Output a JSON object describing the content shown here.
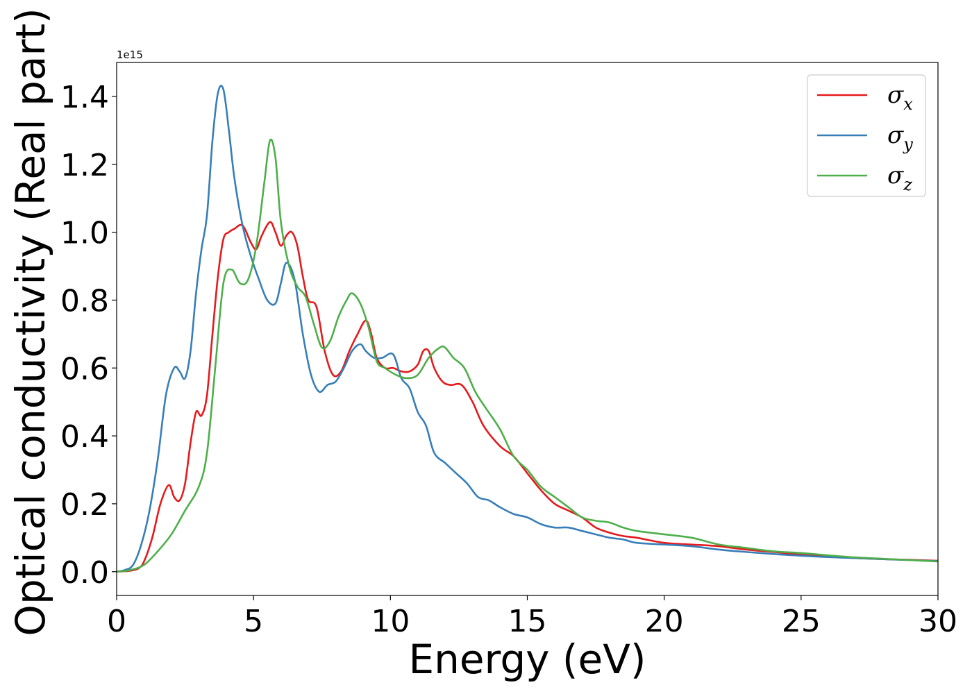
{
  "chart_data": {
    "type": "line",
    "xlabel": "Energy (eV)",
    "ylabel": "Optical conductivity (Real part)",
    "y_offset_label": "1e15",
    "xlim": [
      0,
      30
    ],
    "ylim": [
      -0.07,
      1.5
    ],
    "xticks": [
      0,
      5,
      10,
      15,
      20,
      25,
      30
    ],
    "xtick_labels": [
      "0",
      "5",
      "10",
      "15",
      "20",
      "25",
      "30"
    ],
    "yticks": [
      0.0,
      0.2,
      0.4,
      0.6,
      0.8,
      1.0,
      1.2,
      1.4
    ],
    "ytick_labels": [
      "0.0",
      "0.2",
      "0.4",
      "0.6",
      "0.8",
      "1.0",
      "1.2",
      "1.4"
    ],
    "grid": false,
    "legend_position": "top-right",
    "series": [
      {
        "name": "σx",
        "legend_symbol": "σ",
        "legend_subscript": "x",
        "color": "#e41a1c",
        "x": [
          0,
          0.5,
          0.8,
          1.0,
          1.3,
          1.6,
          1.9,
          2.1,
          2.3,
          2.5,
          2.7,
          2.9,
          3.1,
          3.3,
          3.5,
          3.7,
          3.9,
          4.1,
          4.3,
          4.6,
          4.9,
          5.1,
          5.3,
          5.6,
          5.8,
          6.0,
          6.2,
          6.4,
          6.6,
          6.8,
          7.0,
          7.3,
          7.6,
          7.9,
          8.2,
          8.5,
          8.8,
          9.1,
          9.3,
          9.5,
          9.8,
          10.1,
          10.4,
          10.7,
          11.0,
          11.2,
          11.4,
          11.6,
          11.9,
          12.2,
          12.6,
          13.0,
          13.4,
          14.0,
          14.5,
          15.0,
          15.5,
          16.0,
          16.5,
          17.0,
          17.5,
          18.0,
          18.5,
          19.0,
          20.0,
          21.0,
          22.0,
          23.0,
          24.0,
          25.0,
          26.0,
          27.0,
          28.0,
          29.0,
          30.0
        ],
        "values": [
          0.0,
          0.003,
          0.01,
          0.03,
          0.1,
          0.2,
          0.255,
          0.22,
          0.21,
          0.26,
          0.38,
          0.47,
          0.46,
          0.52,
          0.7,
          0.87,
          0.98,
          1.0,
          1.01,
          1.02,
          0.97,
          0.95,
          0.99,
          1.03,
          1.0,
          0.96,
          0.99,
          1.0,
          0.96,
          0.87,
          0.8,
          0.78,
          0.65,
          0.58,
          0.59,
          0.65,
          0.7,
          0.74,
          0.7,
          0.63,
          0.6,
          0.6,
          0.59,
          0.59,
          0.61,
          0.65,
          0.65,
          0.6,
          0.56,
          0.55,
          0.55,
          0.5,
          0.43,
          0.37,
          0.34,
          0.29,
          0.24,
          0.2,
          0.18,
          0.16,
          0.13,
          0.115,
          0.105,
          0.1,
          0.085,
          0.08,
          0.075,
          0.065,
          0.058,
          0.05,
          0.045,
          0.04,
          0.037,
          0.035,
          0.032
        ]
      },
      {
        "name": "σy",
        "legend_symbol": "σ",
        "legend_subscript": "y",
        "color": "#377eb8",
        "x": [
          0,
          0.3,
          0.6,
          0.9,
          1.2,
          1.5,
          1.8,
          2.1,
          2.3,
          2.5,
          2.7,
          2.9,
          3.1,
          3.3,
          3.5,
          3.7,
          3.9,
          4.1,
          4.3,
          4.6,
          4.9,
          5.2,
          5.5,
          5.8,
          6.0,
          6.2,
          6.5,
          6.8,
          7.1,
          7.4,
          7.7,
          8.0,
          8.3,
          8.6,
          8.9,
          9.1,
          9.4,
          9.7,
          10.1,
          10.4,
          10.7,
          11.0,
          11.3,
          11.6,
          12.0,
          12.4,
          12.8,
          13.2,
          13.6,
          14.0,
          14.5,
          15.0,
          15.5,
          16.0,
          16.5,
          17.0,
          17.5,
          18.0,
          18.5,
          19.0,
          20.0,
          21.0,
          22.0,
          23.0,
          24.0,
          25.0,
          26.0,
          27.0,
          28.0,
          29.0,
          30.0
        ],
        "values": [
          0.0,
          0.005,
          0.02,
          0.08,
          0.18,
          0.33,
          0.52,
          0.6,
          0.59,
          0.57,
          0.65,
          0.82,
          0.95,
          1.05,
          1.27,
          1.41,
          1.42,
          1.3,
          1.16,
          1.02,
          0.93,
          0.86,
          0.8,
          0.79,
          0.85,
          0.91,
          0.86,
          0.7,
          0.58,
          0.53,
          0.55,
          0.56,
          0.6,
          0.65,
          0.67,
          0.65,
          0.63,
          0.63,
          0.64,
          0.57,
          0.54,
          0.47,
          0.43,
          0.35,
          0.32,
          0.29,
          0.26,
          0.22,
          0.21,
          0.19,
          0.17,
          0.16,
          0.14,
          0.13,
          0.13,
          0.12,
          0.11,
          0.1,
          0.095,
          0.085,
          0.08,
          0.075,
          0.065,
          0.058,
          0.052,
          0.047,
          0.043,
          0.04,
          0.037,
          0.034,
          0.031
        ]
      },
      {
        "name": "σz",
        "legend_symbol": "σ",
        "legend_subscript": "z",
        "color": "#4daf4a",
        "x": [
          0,
          0.5,
          1.0,
          1.5,
          2.0,
          2.5,
          3.0,
          3.3,
          3.6,
          3.9,
          4.2,
          4.5,
          4.8,
          5.1,
          5.4,
          5.6,
          5.8,
          6.0,
          6.3,
          6.6,
          6.9,
          7.2,
          7.5,
          7.8,
          8.1,
          8.4,
          8.6,
          8.9,
          9.2,
          9.5,
          9.8,
          10.2,
          10.6,
          11.0,
          11.4,
          11.8,
          12.0,
          12.3,
          12.7,
          13.1,
          13.5,
          14.0,
          14.5,
          15.0,
          15.5,
          16.0,
          16.5,
          17.0,
          17.5,
          18.0,
          18.5,
          19.0,
          20.0,
          21.0,
          22.0,
          23.0,
          24.0,
          25.0,
          26.0,
          27.0,
          28.0,
          29.0,
          30.0
        ],
        "values": [
          0.0,
          0.005,
          0.02,
          0.06,
          0.11,
          0.18,
          0.25,
          0.35,
          0.6,
          0.85,
          0.89,
          0.85,
          0.86,
          0.96,
          1.15,
          1.27,
          1.22,
          1.03,
          0.9,
          0.84,
          0.81,
          0.73,
          0.66,
          0.68,
          0.75,
          0.8,
          0.82,
          0.79,
          0.72,
          0.62,
          0.6,
          0.58,
          0.57,
          0.58,
          0.63,
          0.66,
          0.66,
          0.63,
          0.6,
          0.53,
          0.48,
          0.42,
          0.34,
          0.3,
          0.25,
          0.22,
          0.19,
          0.16,
          0.15,
          0.145,
          0.13,
          0.12,
          0.11,
          0.1,
          0.08,
          0.07,
          0.06,
          0.055,
          0.048,
          0.042,
          0.038,
          0.034,
          0.03
        ]
      }
    ]
  }
}
